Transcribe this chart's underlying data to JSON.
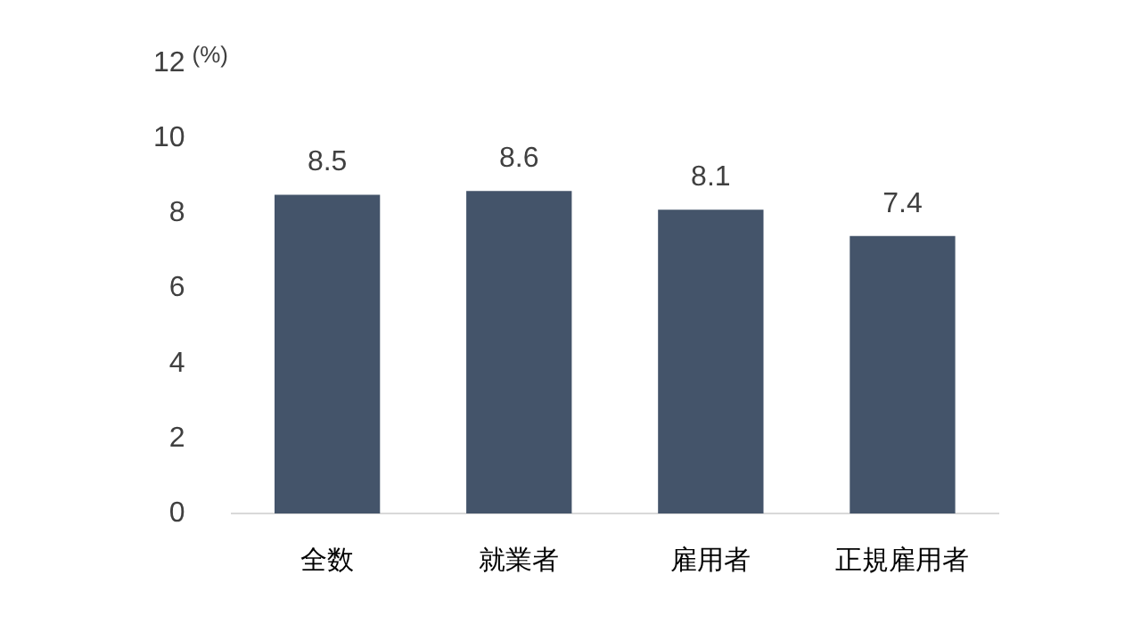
{
  "chart_data": {
    "type": "bar",
    "ylabel": "(%)",
    "categories": [
      "全数",
      "就業者",
      "雇用者",
      "正規雇用者"
    ],
    "values": [
      8.5,
      8.6,
      8.1,
      7.4
    ],
    "color": "#44546a",
    "ylim": [
      0,
      12
    ],
    "yticks": [
      0,
      2,
      4,
      6,
      8,
      10,
      12
    ],
    "grid": false,
    "legend": false,
    "data_labels": true
  }
}
